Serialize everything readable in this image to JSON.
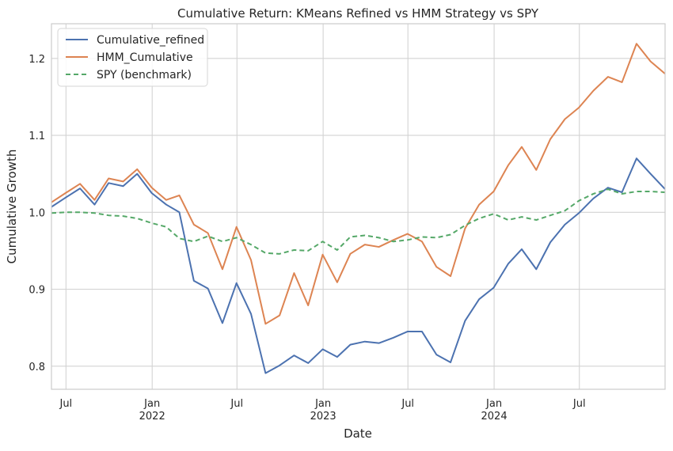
{
  "chart_data": {
    "type": "line",
    "title": "Cumulative Return: KMeans Refined vs HMM Strategy vs SPY",
    "xlabel": "Date",
    "ylabel": "Cumulative Growth",
    "xlim": [
      "2021-05-31",
      "2024-12-31"
    ],
    "ylim": [
      0.77,
      1.245
    ],
    "grid": true,
    "legend_position": "top-left",
    "x_ticks": [
      {
        "date": "2021-07-01",
        "label": "Jul",
        "sub": ""
      },
      {
        "date": "2022-01-01",
        "label": "Jan",
        "sub": "2022"
      },
      {
        "date": "2022-07-01",
        "label": "Jul",
        "sub": ""
      },
      {
        "date": "2023-01-01",
        "label": "Jan",
        "sub": "2023"
      },
      {
        "date": "2023-07-01",
        "label": "Jul",
        "sub": ""
      },
      {
        "date": "2024-01-01",
        "label": "Jan",
        "sub": "2024"
      },
      {
        "date": "2024-07-01",
        "label": "Jul",
        "sub": ""
      }
    ],
    "y_ticks": [
      {
        "value": 0.8,
        "label": "0.8"
      },
      {
        "value": 0.9,
        "label": "0.9"
      },
      {
        "value": 1.0,
        "label": "1.0"
      },
      {
        "value": 1.1,
        "label": "1.1"
      },
      {
        "value": 1.2,
        "label": "1.2"
      }
    ],
    "x": [
      "2021-05-31",
      "2021-06-30",
      "2021-07-31",
      "2021-08-31",
      "2021-09-30",
      "2021-10-31",
      "2021-11-30",
      "2021-12-31",
      "2022-01-31",
      "2022-02-28",
      "2022-03-31",
      "2022-04-30",
      "2022-05-31",
      "2022-06-30",
      "2022-07-31",
      "2022-08-31",
      "2022-09-30",
      "2022-10-31",
      "2022-11-30",
      "2022-12-31",
      "2023-01-31",
      "2023-02-28",
      "2023-03-31",
      "2023-04-30",
      "2023-05-31",
      "2023-06-30",
      "2023-07-31",
      "2023-08-31",
      "2023-09-30",
      "2023-10-31",
      "2023-11-30",
      "2023-12-31",
      "2024-01-31",
      "2024-02-29",
      "2024-03-31",
      "2024-04-30",
      "2024-05-31",
      "2024-06-30",
      "2024-07-31",
      "2024-08-31",
      "2024-09-30",
      "2024-10-31",
      "2024-11-30",
      "2024-12-31"
    ],
    "series": [
      {
        "name": "Cumulative_refined",
        "color": "#4c72b0",
        "dash": "",
        "values": [
          1.007,
          1.019,
          1.031,
          1.01,
          1.038,
          1.034,
          1.05,
          1.025,
          1.01,
          1.0,
          0.911,
          0.901,
          0.856,
          0.908,
          0.868,
          0.791,
          0.801,
          0.814,
          0.804,
          0.822,
          0.812,
          0.828,
          0.832,
          0.83,
          0.837,
          0.845,
          0.845,
          0.815,
          0.805,
          0.859,
          0.887,
          0.902,
          0.933,
          0.952,
          0.926,
          0.961,
          0.984,
          0.999,
          1.018,
          1.032,
          1.026,
          1.07,
          1.05,
          1.03
        ]
      },
      {
        "name": "HMM_Cumulative",
        "color": "#dd8452",
        "dash": "",
        "values": [
          1.013,
          1.025,
          1.037,
          1.016,
          1.044,
          1.04,
          1.056,
          1.032,
          1.016,
          1.022,
          0.984,
          0.973,
          0.926,
          0.981,
          0.938,
          0.855,
          0.866,
          0.921,
          0.879,
          0.945,
          0.909,
          0.946,
          0.958,
          0.955,
          0.964,
          0.972,
          0.962,
          0.929,
          0.917,
          0.979,
          1.01,
          1.027,
          1.061,
          1.085,
          1.055,
          1.095,
          1.121,
          1.136,
          1.158,
          1.176,
          1.169,
          1.219,
          1.196,
          1.18
        ]
      },
      {
        "name": "SPY (benchmark)",
        "color": "#55a868",
        "dash": "6,4",
        "values": [
          0.999,
          1.0,
          1.0,
          0.999,
          0.996,
          0.995,
          0.992,
          0.986,
          0.981,
          0.966,
          0.962,
          0.969,
          0.962,
          0.967,
          0.958,
          0.947,
          0.946,
          0.951,
          0.95,
          0.962,
          0.951,
          0.968,
          0.97,
          0.967,
          0.962,
          0.964,
          0.968,
          0.967,
          0.971,
          0.983,
          0.992,
          0.998,
          0.99,
          0.994,
          0.99,
          0.996,
          1.002,
          1.015,
          1.024,
          1.03,
          1.024,
          1.027,
          1.027,
          1.026
        ]
      }
    ]
  }
}
